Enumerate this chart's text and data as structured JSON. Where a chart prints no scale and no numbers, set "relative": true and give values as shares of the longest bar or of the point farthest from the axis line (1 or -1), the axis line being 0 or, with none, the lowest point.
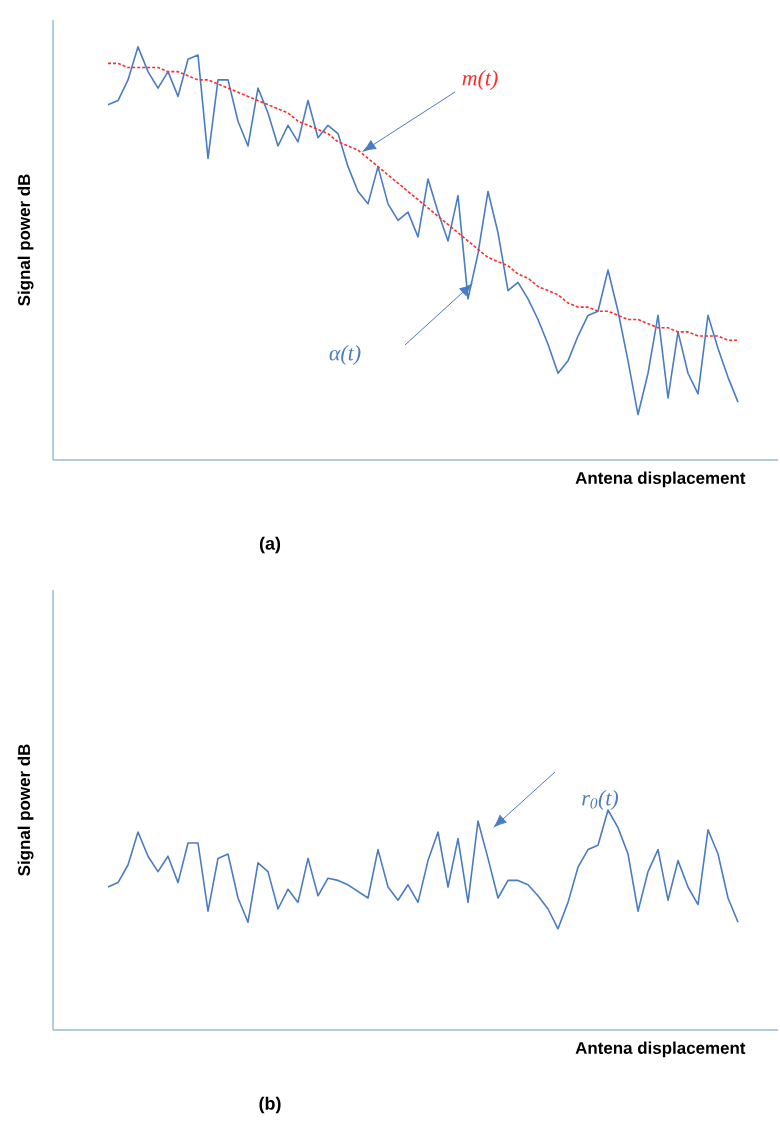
{
  "chart_data": [
    {
      "type": "line",
      "relative": true,
      "xlabel": "Antena displacement",
      "ylabel": "Signal power dB",
      "marker": "none",
      "annotations": [
        "(a)"
      ],
      "categories": [
        null,
        null,
        null,
        null,
        null,
        null,
        null,
        null,
        null,
        null,
        null,
        null,
        null,
        null,
        null,
        null,
        null,
        null,
        null,
        null,
        null,
        null,
        null,
        null,
        null,
        null,
        null,
        null,
        null,
        null,
        null,
        null,
        null,
        null,
        null,
        null,
        null,
        null,
        null,
        null,
        null,
        null,
        null,
        null,
        null,
        null,
        null,
        null,
        null,
        null,
        null,
        null,
        null,
        null,
        null,
        null,
        null,
        null,
        null,
        null,
        null,
        null,
        null,
        null
      ],
      "series": [
        {
          "name": "α(t)",
          "color": "#4a7cc4",
          "line_style": "solid",
          "values": [
            0.86,
            0.87,
            0.92,
            1.0,
            0.94,
            0.9,
            0.94,
            0.88,
            0.97,
            0.98,
            0.73,
            0.92,
            0.92,
            0.82,
            0.76,
            0.9,
            0.84,
            0.76,
            0.81,
            0.77,
            0.87,
            0.78,
            0.81,
            0.79,
            0.71,
            0.65,
            0.62,
            0.71,
            0.62,
            0.58,
            0.6,
            0.54,
            0.68,
            0.6,
            0.53,
            0.64,
            0.39,
            0.5,
            0.65,
            0.55,
            0.41,
            0.43,
            0.39,
            0.34,
            0.28,
            0.21,
            0.24,
            0.3,
            0.35,
            0.36,
            0.46,
            0.36,
            0.24,
            0.11,
            0.21,
            0.35,
            0.15,
            0.31,
            0.21,
            0.16,
            0.35,
            0.27,
            0.2,
            0.14
          ]
        },
        {
          "name": "m(t)",
          "color": "#ff2a2a",
          "line_style": "dashed",
          "values": [
            0.96,
            0.96,
            0.95,
            0.95,
            0.95,
            0.95,
            0.94,
            0.94,
            0.93,
            0.92,
            0.92,
            0.91,
            0.9,
            0.89,
            0.88,
            0.87,
            0.86,
            0.85,
            0.84,
            0.82,
            0.81,
            0.8,
            0.79,
            0.77,
            0.76,
            0.75,
            0.73,
            0.71,
            0.69,
            0.67,
            0.65,
            0.63,
            0.61,
            0.59,
            0.57,
            0.55,
            0.53,
            0.51,
            0.49,
            0.48,
            0.47,
            0.45,
            0.44,
            0.42,
            0.41,
            0.4,
            0.38,
            0.37,
            0.37,
            0.36,
            0.36,
            0.35,
            0.34,
            0.34,
            0.33,
            0.32,
            0.32,
            0.31,
            0.31,
            0.3,
            0.3,
            0.3,
            0.29,
            0.29
          ]
        }
      ]
    },
    {
      "type": "line",
      "relative": true,
      "xlabel": "Antena displacement",
      "ylabel": "Signal power dB",
      "marker": "none",
      "annotations": [
        "(b)"
      ],
      "categories": [
        null,
        null,
        null,
        null,
        null,
        null,
        null,
        null,
        null,
        null,
        null,
        null,
        null,
        null,
        null,
        null,
        null,
        null,
        null,
        null,
        null,
        null,
        null,
        null,
        null,
        null,
        null,
        null,
        null,
        null,
        null,
        null,
        null,
        null,
        null,
        null,
        null,
        null,
        null,
        null,
        null,
        null,
        null,
        null,
        null,
        null,
        null,
        null,
        null,
        null,
        null,
        null,
        null,
        null,
        null,
        null,
        null,
        null,
        null,
        null,
        null,
        null,
        null,
        null
      ],
      "series": [
        {
          "name": "r$_{0}$(t)",
          "color": "#4a7cc4",
          "line_style": "solid",
          "values": [
            0.65,
            0.67,
            0.75,
            0.9,
            0.79,
            0.72,
            0.79,
            0.67,
            0.85,
            0.85,
            0.54,
            0.78,
            0.8,
            0.6,
            0.49,
            0.76,
            0.72,
            0.55,
            0.64,
            0.58,
            0.78,
            0.61,
            0.69,
            0.68,
            0.66,
            0.63,
            0.6,
            0.82,
            0.65,
            0.59,
            0.66,
            0.58,
            0.77,
            0.9,
            0.65,
            0.87,
            0.58,
            0.95,
            0.78,
            0.6,
            0.68,
            0.68,
            0.66,
            0.61,
            0.55,
            0.46,
            0.58,
            0.74,
            0.82,
            0.84,
            1.0,
            0.92,
            0.8,
            0.54,
            0.72,
            0.82,
            0.59,
            0.77,
            0.65,
            0.57,
            0.91,
            0.8,
            0.6,
            0.49
          ]
        }
      ]
    }
  ]
}
